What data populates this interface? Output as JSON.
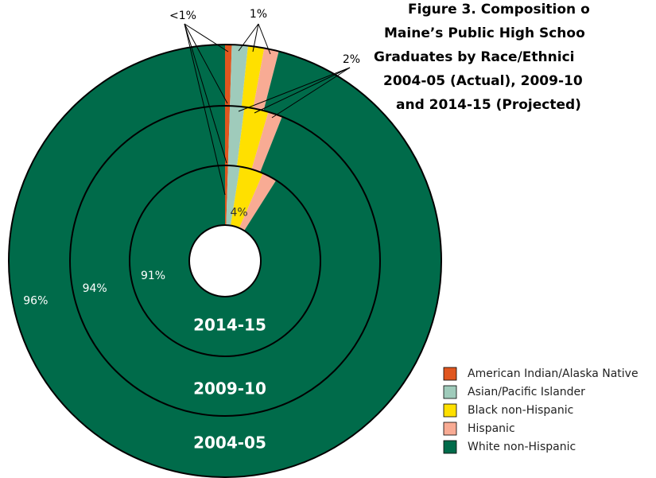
{
  "chart_data": {
    "type": "nested-donut",
    "title": [
      "Figure 3.  Composition o",
      "Maine’s Public High Schoo",
      "Graduates by Race/Ethnici",
      "2004-05 (Actual), 2009-10",
      "and 2014-15 (Projected)"
    ],
    "categories": [
      "American Indian/Alaska Native",
      "Asian/Pacific Islander",
      "Black non-Hispanic",
      "Hispanic",
      "White non-Hispanic"
    ],
    "colors": [
      "#e0561f",
      "#9fcbbb",
      "#ffe000",
      "#f8ab94",
      "#006b4a"
    ],
    "series": [
      {
        "name": "2004-05",
        "values": [
          0.5,
          1.2,
          1.2,
          1.1,
          96
        ],
        "value_labels": [
          null,
          null,
          null,
          null,
          "96%"
        ]
      },
      {
        "name": "2009-10",
        "values": [
          0.5,
          1.5,
          2.5,
          1.5,
          94
        ],
        "value_labels": [
          null,
          null,
          null,
          null,
          "94%"
        ]
      },
      {
        "name": "2014-15",
        "values": [
          0.5,
          2,
          4,
          2.5,
          91
        ],
        "value_labels": [
          null,
          null,
          "4%",
          null,
          "91%"
        ]
      }
    ],
    "annotations": [
      "<1%",
      "1%",
      "2%"
    ],
    "legend": "lower right"
  }
}
